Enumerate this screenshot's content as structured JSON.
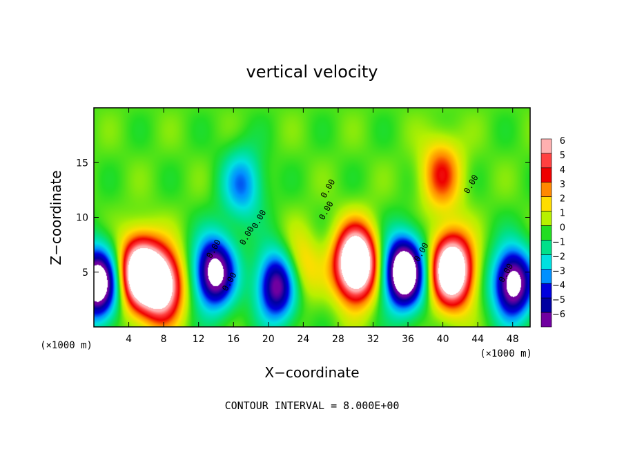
{
  "chart_data": {
    "type": "heatmap",
    "title": "vertical velocity",
    "xlabel": "X−coordinate",
    "ylabel": "Z−coordinate",
    "x_unit_label": "(×1000 m)",
    "z_unit_label": "(×1000 m)",
    "xlim": [
      0,
      50
    ],
    "ylim": [
      0,
      20
    ],
    "x_ticks": [
      4,
      8,
      12,
      16,
      20,
      24,
      28,
      32,
      36,
      40,
      44,
      48
    ],
    "y_ticks": [
      5,
      10,
      15
    ],
    "colorbar": {
      "levels": [
        6,
        5,
        4,
        3,
        2,
        1,
        0,
        -1,
        -2,
        -3,
        -4,
        -5,
        -6
      ],
      "tick_labels": [
        "6",
        "5",
        "4",
        "3",
        "2",
        "1",
        "0",
        "−1",
        "−2",
        "−3",
        "−4",
        "−5",
        "−6"
      ],
      "range": [
        -6,
        6
      ]
    },
    "footer": "CONTOUR INTERVAL = 8.000E+00",
    "contour_labels": [
      "0.00",
      "0.00",
      "0.00",
      "0.00",
      "0.00",
      "0.00",
      "0.00",
      "0.00",
      "0.00"
    ],
    "updrafts": [
      {
        "x": 5.2,
        "z": 5.0,
        "w": 9
      },
      {
        "x": 7.8,
        "z": 3.8,
        "w": 8
      },
      {
        "x": 30.0,
        "z": 5.8,
        "w": 11
      },
      {
        "x": 41.0,
        "z": 5.2,
        "w": 10
      },
      {
        "x": 23.5,
        "z": 5.5,
        "w": 2.5
      },
      {
        "x": 39.8,
        "z": 14.0,
        "w": 3.5
      }
    ],
    "downdrafts": [
      {
        "x": 0.4,
        "z": 4.0,
        "w": -9
      },
      {
        "x": 13.8,
        "z": 5.0,
        "w": -8
      },
      {
        "x": 21.0,
        "z": 3.8,
        "w": -7
      },
      {
        "x": 35.5,
        "z": 5.0,
        "w": -10
      },
      {
        "x": 48.0,
        "z": 4.0,
        "w": -8
      },
      {
        "x": 17.0,
        "z": 13.0,
        "w": -3.5
      }
    ],
    "colors": {
      "scale": [
        "#ffb0b0",
        "#ff4040",
        "#ee0000",
        "#ff8800",
        "#ffdd00",
        "#b7f000",
        "#22dd22",
        "#00e08a",
        "#00e0e0",
        "#0090ff",
        "#0000dd",
        "#0000a0",
        "#7000a0"
      ]
    }
  }
}
